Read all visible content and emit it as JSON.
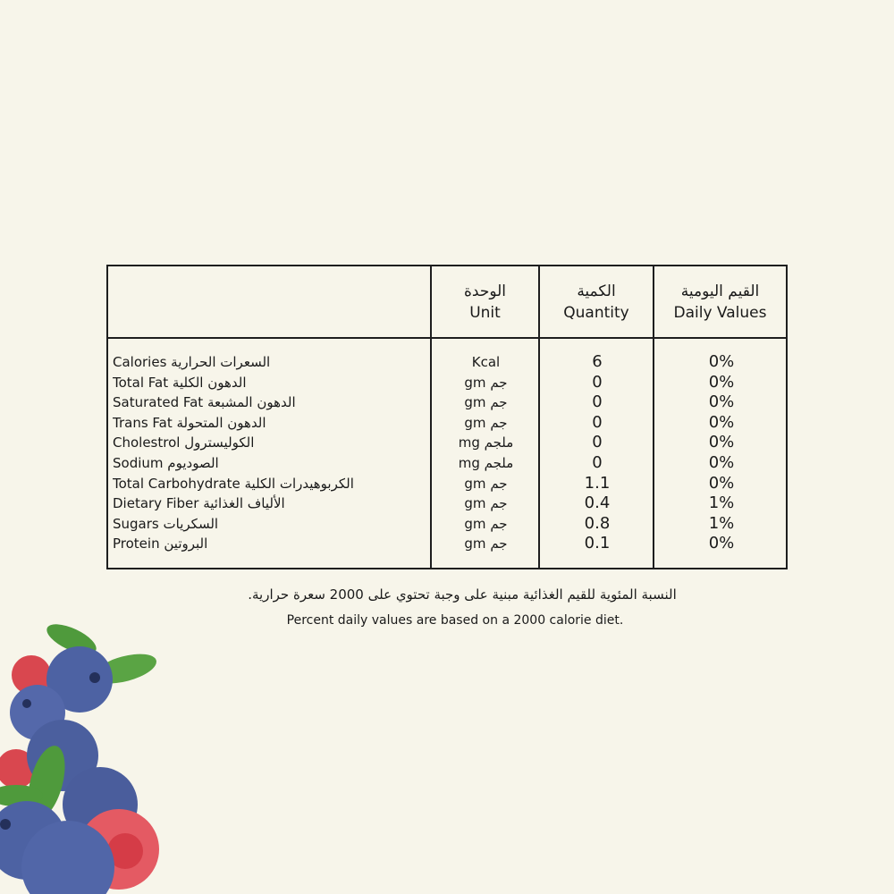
{
  "headers": {
    "unit_ar": "الوحدة",
    "unit_en": "Unit",
    "quantity_ar": "الكمية",
    "quantity_en": "Quantity",
    "daily_ar": "القيم اليومية",
    "daily_en": "Daily Values"
  },
  "rows": [
    {
      "en": "Calories",
      "ar": "السعرات الحرارية",
      "unit": "Kcal",
      "quantity": "6",
      "daily": "0%"
    },
    {
      "en": "Total Fat",
      "ar": "الدهون الكلية",
      "unit": "gm جم",
      "quantity": "0",
      "daily": "0%"
    },
    {
      "en": "Saturated Fat",
      "ar": "الدهون المشبعة",
      "unit": "gm جم",
      "quantity": "0",
      "daily": "0%"
    },
    {
      "en": "Trans Fat",
      "ar": "الدهون المتحولة",
      "unit": "gm جم",
      "quantity": "0",
      "daily": "0%"
    },
    {
      "en": "Cholestrol",
      "ar": "الكوليسترول",
      "unit": "mg ملجم",
      "quantity": "0",
      "daily": "0%"
    },
    {
      "en": "Sodium",
      "ar": "الصوديوم",
      "unit": "mg ملجم",
      "quantity": "0",
      "daily": "0%"
    },
    {
      "en": "Total Carbohydrate",
      "ar": "الكربوهيدرات الكلية",
      "unit": "gm جم",
      "quantity": "1.1",
      "daily": "0%"
    },
    {
      "en": "Dietary Fiber",
      "ar": "الألياف الغذائية",
      "unit": "gm جم",
      "quantity": "0.4",
      "daily": "1%"
    },
    {
      "en": "Sugars",
      "ar": "السكريات",
      "unit": "gm جم",
      "quantity": "0.8",
      "daily": "1%"
    },
    {
      "en": "Protein",
      "ar": "البروتين",
      "unit": "gm جم",
      "quantity": "0.1",
      "daily": "0%"
    }
  ],
  "footnote": {
    "ar": "النسبة المئوية للقيم الغذائية مبنية على وجبة تحتوي على 2000 سعرة حرارية.",
    "en": "Percent daily values are based on a 2000 calorie diet."
  },
  "colors": {
    "background": "#f7f5ea",
    "border": "#1e1e1e",
    "blueberry": "#4a5f9e",
    "raspberry": "#e0505a",
    "leaf": "#4f9a3c"
  }
}
